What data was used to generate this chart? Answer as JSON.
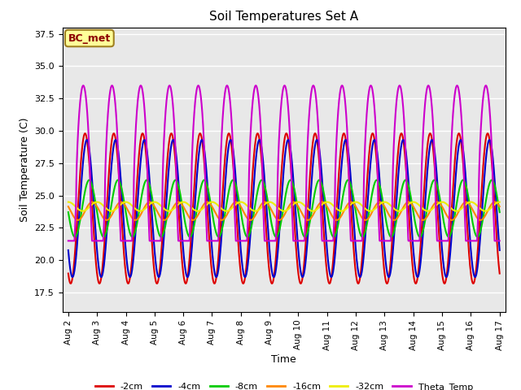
{
  "title": "Soil Temperatures Set A",
  "xlabel": "Time",
  "ylabel": "Soil Temperature (C)",
  "ylim": [
    16,
    38
  ],
  "bg_color": "#e8e8e8",
  "fig_color": "#ffffff",
  "line_styles": {
    "neg2cm": {
      "color": "#dd0000",
      "label": "-2cm",
      "lw": 1.5
    },
    "neg4cm": {
      "color": "#0000cc",
      "label": "-4cm",
      "lw": 1.5
    },
    "neg8cm": {
      "color": "#00cc00",
      "label": "-8cm",
      "lw": 1.5
    },
    "neg16cm": {
      "color": "#ff8800",
      "label": "-16cm",
      "lw": 1.5
    },
    "neg32cm": {
      "color": "#eeee00",
      "label": "-32cm",
      "lw": 1.5
    },
    "theta": {
      "color": "#cc00cc",
      "label": "Theta_Temp",
      "lw": 1.5
    }
  },
  "x_tick_labels": [
    "Aug 2",
    "Aug 3",
    "Aug 4",
    "Aug 5",
    "Aug 6",
    "Aug 7",
    "Aug 8",
    "Aug 9",
    "Aug 10",
    "Aug 11",
    "Aug 12",
    "Aug 13",
    "Aug 14",
    "Aug 15",
    "Aug 16",
    "Aug 17"
  ],
  "x_tick_positions": [
    0,
    1,
    2,
    3,
    4,
    5,
    6,
    7,
    8,
    9,
    10,
    11,
    12,
    13,
    14,
    15
  ],
  "annotation": "BC_met"
}
